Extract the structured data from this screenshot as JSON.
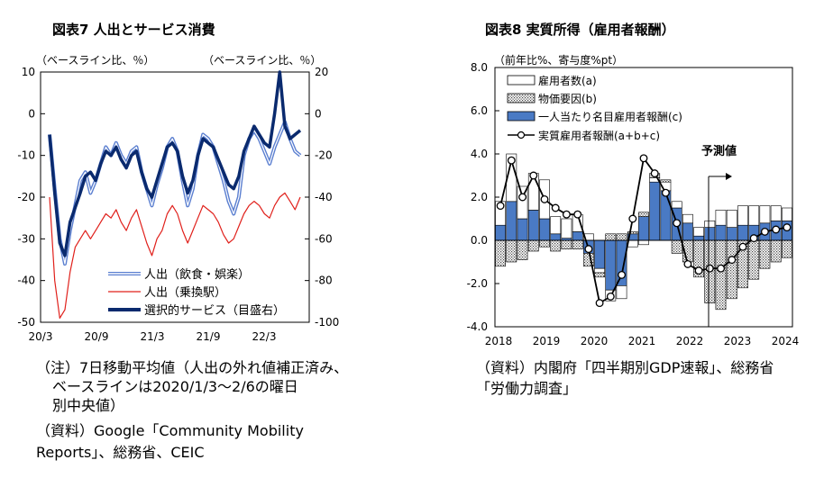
{
  "chart_data": [
    {
      "id": "fig7",
      "type": "line",
      "title": "図表7 人出とサービス消費",
      "y_left_label": "（ベースライン比、％）",
      "y_right_label": "（ベースライン比、％）",
      "y_left_ticks": [
        "10",
        "0",
        "-10",
        "-20",
        "-30",
        "-40",
        "-50"
      ],
      "y_right_ticks": [
        "20",
        "0",
        "-20",
        "-40",
        "-60",
        "-80",
        "-100"
      ],
      "x_ticks": [
        "20/3",
        "20/9",
        "21/3",
        "21/9",
        "22/3"
      ],
      "ylim_left": [
        -50,
        10
      ],
      "ylim_right": [
        -100,
        20
      ],
      "series": [
        {
          "name": "人出（飲食・娯楽）",
          "axis": "left",
          "color": "#5b7fd0",
          "values": [
            -5,
            -18,
            -30,
            -36,
            -28,
            -22,
            -16,
            -14,
            -19,
            -16,
            -12,
            -8,
            -10,
            -7,
            -10,
            -12,
            -9,
            -8,
            -14,
            -18,
            -22,
            -17,
            -13,
            -8,
            -6,
            -9,
            -16,
            -22,
            -18,
            -10,
            -5,
            -6,
            -8,
            -12,
            -16,
            -21,
            -24,
            -20,
            -10,
            -6,
            -4,
            -6,
            -9,
            -12,
            -8,
            -5,
            -2,
            -6,
            -9,
            -10
          ]
        },
        {
          "name": "人出（乗換駅）",
          "axis": "left",
          "color": "#e0201b",
          "values": [
            -20,
            -40,
            -49,
            -47,
            -38,
            -32,
            -30,
            -28,
            -30,
            -28,
            -26,
            -24,
            -25,
            -23,
            -26,
            -28,
            -25,
            -23,
            -27,
            -31,
            -34,
            -30,
            -28,
            -24,
            -22,
            -24,
            -28,
            -31,
            -28,
            -25,
            -22,
            -23,
            -24,
            -26,
            -29,
            -31,
            -30,
            -27,
            -24,
            -22,
            -21,
            -22,
            -24,
            -25,
            -22,
            -20,
            -19,
            -21,
            -23,
            -20
          ]
        },
        {
          "name": "選択的サービス（目盛右）",
          "axis": "right",
          "color": "#0a2a6e",
          "values": [
            -10,
            -38,
            -62,
            -68,
            -52,
            -45,
            -38,
            -30,
            -28,
            -32,
            -24,
            -18,
            -20,
            -16,
            -22,
            -26,
            -20,
            -18,
            -28,
            -36,
            -40,
            -32,
            -24,
            -16,
            -14,
            -18,
            -30,
            -38,
            -32,
            -20,
            -12,
            -14,
            -16,
            -22,
            -28,
            -34,
            -36,
            -30,
            -18,
            -12,
            -6,
            -10,
            -14,
            -16,
            0,
            20,
            -6,
            -12,
            -10,
            -8
          ]
        }
      ],
      "notes": [
        "（注）7日移動平均値（人出の外れ値補正済み、",
        "ベースラインは2020/1/3～2/6の曜日",
        "別中央値）",
        "（資料）Google「Community Mobility",
        "Reports」、総務省、CEIC"
      ]
    },
    {
      "id": "fig8",
      "type": "bar",
      "title": "図表8 実質所得（雇用者報酬）",
      "y_label": "（前年比%、寄与度%pt）",
      "y_ticks": [
        "8.0",
        "6.0",
        "4.0",
        "2.0",
        "0.0",
        "-2.0",
        "-4.0"
      ],
      "ylim": [
        -4,
        8
      ],
      "x_ticks": [
        "2018",
        "2019",
        "2020",
        "2021",
        "2022",
        "2023",
        "2024"
      ],
      "forecast_label": "予測値",
      "series": [
        {
          "name": "雇用者数(a)",
          "color": "#ffffff",
          "values": [
            1.1,
            2.2,
            1.5,
            1.7,
            1.8,
            0.8,
            0.9,
            0.8,
            0.3,
            -0.2,
            -0.5,
            -0.6,
            -0.3,
            -0.2,
            0.2,
            0.4,
            0.3,
            0.4,
            0.4,
            0.3,
            0.7,
            0.8,
            0.9,
            0.9,
            0.8,
            0.7,
            0.6
          ]
        },
        {
          "name": "物価要因(b)",
          "color": "#d7d7d7",
          "values": [
            -1.2,
            -1.0,
            -0.9,
            -0.5,
            -0.3,
            -0.5,
            -0.4,
            -0.4,
            -0.6,
            -0.2,
            0.3,
            0.3,
            0.1,
            0.2,
            0.2,
            0.1,
            -0.6,
            -1.0,
            -1.7,
            -2.9,
            -3.2,
            -2.7,
            -2.2,
            -1.8,
            -1.3,
            -1.0,
            -0.8
          ]
        },
        {
          "name": "一人当たり名目雇用者報酬(c)",
          "color": "#4a7ac4",
          "values": [
            0.7,
            1.8,
            1.0,
            1.4,
            1.0,
            0.3,
            0.1,
            0.4,
            -0.6,
            -1.3,
            -2.3,
            -2.1,
            0.3,
            1.1,
            2.7,
            2.3,
            1.5,
            0.8,
            0.2,
            0.6,
            0.7,
            0.6,
            0.7,
            0.7,
            0.8,
            0.9,
            0.9
          ]
        },
        {
          "name": "実質雇用者報酬(a+b+c)",
          "color": "#000000",
          "type": "line",
          "values": [
            1.6,
            3.7,
            2.0,
            3.0,
            1.9,
            1.5,
            1.2,
            1.2,
            -0.4,
            -2.9,
            -2.6,
            -1.6,
            1.0,
            3.8,
            3.1,
            2.2,
            0.8,
            -1.1,
            -1.4,
            -1.3,
            -1.3,
            -0.9,
            -0.3,
            0.1,
            0.4,
            0.5,
            0.6
          ]
        }
      ],
      "notes": [
        "（資料）内閣府「四半期別GDP速報」、総務省",
        "「労働力調査」"
      ]
    }
  ]
}
